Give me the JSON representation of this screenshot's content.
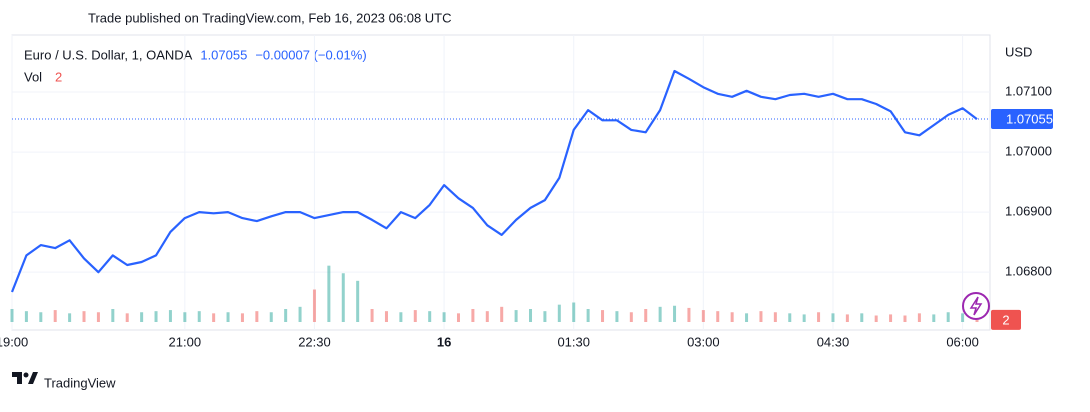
{
  "header": {
    "published": "Trade published on TradingView.com, Feb 16, 2023 06:08 UTC"
  },
  "chart_data": {
    "type": "line",
    "symbol": "Euro / U.S. Dollar, 1, OANDA",
    "last_price": 1.07055,
    "change": "−0.00007 (−0.01%)",
    "currency": "USD",
    "categories": [
      "19:00",
      null,
      null,
      null,
      null,
      null,
      null,
      null,
      null,
      null,
      null,
      null,
      "21:00",
      null,
      null,
      null,
      null,
      null,
      null,
      null,
      null,
      "22:30",
      null,
      null,
      null,
      null,
      null,
      null,
      null,
      null,
      "16",
      null,
      null,
      null,
      null,
      null,
      null,
      null,
      null,
      "01:30",
      null,
      null,
      null,
      null,
      null,
      null,
      null,
      null,
      "03:00",
      null,
      null,
      null,
      null,
      null,
      null,
      null,
      null,
      "04:30",
      null,
      null,
      null,
      null,
      null,
      null,
      null,
      null,
      "06:00",
      null
    ],
    "series": [
      {
        "name": "Euro / U.S. Dollar",
        "color": "#2962ff",
        "values": [
          1.06767,
          1.06828,
          1.06845,
          1.0684,
          1.06853,
          1.06823,
          1.068,
          1.06828,
          1.06812,
          1.06817,
          1.06828,
          1.06867,
          1.0689,
          1.069,
          1.06898,
          1.069,
          1.0689,
          1.06885,
          1.06893,
          1.069,
          1.069,
          1.0689,
          1.06895,
          1.069,
          1.069,
          1.06887,
          1.06873,
          1.069,
          1.0689,
          1.06912,
          1.06945,
          1.06923,
          1.06907,
          1.06878,
          1.06862,
          1.06887,
          1.06907,
          1.0692,
          1.06957,
          1.07037,
          1.0707,
          1.07053,
          1.07053,
          1.07037,
          1.07033,
          1.0707,
          1.07135,
          1.07122,
          1.07108,
          1.07097,
          1.07092,
          1.07102,
          1.07092,
          1.07088,
          1.07095,
          1.07097,
          1.07092,
          1.07097,
          1.07088,
          1.07088,
          1.0708,
          1.07068,
          1.07033,
          1.07028,
          1.07045,
          1.07062,
          1.07073,
          1.07055
        ]
      }
    ],
    "ylim": [
      1.06717,
      1.07195
    ],
    "yticks": [
      {
        "value": 1.068,
        "label": "1.06800"
      },
      {
        "value": 1.069,
        "label": "1.06900"
      },
      {
        "value": 1.07,
        "label": "1.07000"
      },
      {
        "value": 1.071,
        "label": "1.07100"
      }
    ],
    "grid": true,
    "volume": {
      "name": "Vol",
      "up_color": "#26a69a",
      "down_color": "#ef5350",
      "ylim": [
        0,
        60
      ],
      "values": [
        12,
        10,
        9,
        11,
        8,
        10,
        9,
        12,
        8,
        9,
        10,
        11,
        9,
        10,
        8,
        9,
        8,
        10,
        9,
        12,
        14,
        30,
        52,
        45,
        38,
        12,
        10,
        9,
        11,
        10,
        9,
        8,
        12,
        10,
        14,
        11,
        12,
        10,
        16,
        18,
        12,
        11,
        10,
        9,
        12,
        14,
        15,
        13,
        11,
        10,
        9,
        8,
        10,
        9,
        8,
        7,
        9,
        8,
        7,
        8,
        6,
        7,
        6,
        8,
        7,
        9,
        8,
        2
      ]
    }
  },
  "footer": {
    "brand": "TradingView"
  }
}
